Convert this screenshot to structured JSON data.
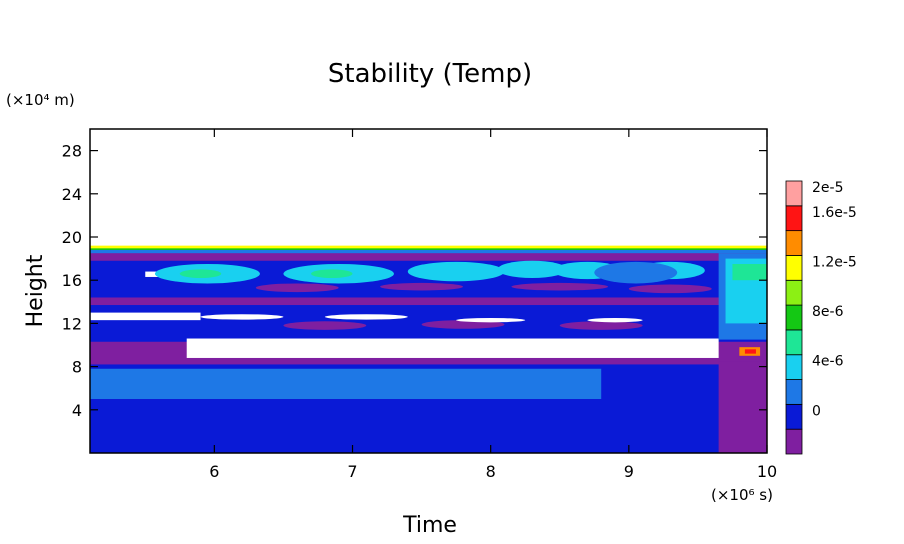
{
  "chart_data": {
    "type": "heatmap",
    "title": "Stability (Temp)",
    "xlabel": "Time",
    "ylabel": "Height",
    "x_unit": "(×10⁶ s)",
    "y_unit": "(×10⁴ m)",
    "xlim": [
      5.1,
      10
    ],
    "ylim": [
      0,
      30
    ],
    "x_ticks": [
      6,
      7,
      8,
      9,
      10
    ],
    "x_tick_labels": [
      "6",
      "7",
      "8",
      "9",
      "10"
    ],
    "y_ticks": [
      4,
      8,
      12,
      16,
      20,
      24,
      28
    ],
    "y_tick_labels": [
      "4",
      "8",
      "12",
      "16",
      "20",
      "24",
      "28"
    ],
    "grid": false,
    "colorbar": {
      "levels": [
        {
          "color": "#7f1fa0"
        },
        {
          "color": "#0a1ad6",
          "label": "0"
        },
        {
          "color": "#1e78e6"
        },
        {
          "color": "#19d0f0",
          "label": "4e-6"
        },
        {
          "color": "#1ee696"
        },
        {
          "color": "#14c814",
          "label": "8e-6"
        },
        {
          "color": "#8cf014"
        },
        {
          "color": "#ffff00",
          "label": "1.2e-5"
        },
        {
          "color": "#ff8c00"
        },
        {
          "color": "#ff1414",
          "label": "1.6e-5"
        },
        {
          "color": "#ffa0a0",
          "label": "2e-5"
        }
      ]
    },
    "regions": [
      {
        "level": 1,
        "x0": 5.1,
        "x1": 10,
        "y0": 0,
        "y1": 19
      },
      {
        "level": 2,
        "x0": 5.1,
        "x1": 8.8,
        "y0": 5,
        "y1": 7.8
      },
      {
        "level": 0,
        "x0": 5.1,
        "x1": 10,
        "y0": 8.2,
        "y1": 10.3
      },
      {
        "level": 0,
        "x0": 9.65,
        "x1": 10,
        "y0": 0,
        "y1": 8.5
      },
      {
        "level": 0,
        "x0": 5.1,
        "x1": 10,
        "y0": 17.8,
        "y1": 18.7
      },
      {
        "level": 0,
        "x0": 5.1,
        "x1": 10,
        "y0": 13.7,
        "y1": 14.4
      },
      {
        "level": 2,
        "x0": 5.1,
        "x1": 10,
        "y0": 18.5,
        "y1": 19
      },
      {
        "level": 5,
        "x0": 5.1,
        "x1": 10,
        "y0": 18.8,
        "y1": 19.1
      },
      {
        "level": 7,
        "x0": 5.1,
        "x1": 10,
        "y0": 18.95,
        "y1": 19.2
      },
      {
        "level": -1,
        "x0": 5.8,
        "x1": 9.65,
        "y0": 8.8,
        "y1": 10.6
      },
      {
        "level": -1,
        "x0": 5.1,
        "x1": 5.9,
        "y0": 12.3,
        "y1": 13
      },
      {
        "level": -1,
        "x0": 5.5,
        "x1": 5.8,
        "y0": 16.3,
        "y1": 16.8
      },
      {
        "level": 2,
        "x0": 9.65,
        "x1": 10,
        "y0": 10.5,
        "y1": 18.5
      },
      {
        "level": 3,
        "x0": 9.7,
        "x1": 10,
        "y0": 12,
        "y1": 18
      },
      {
        "level": 4,
        "x0": 9.75,
        "x1": 10,
        "y0": 16,
        "y1": 17.5
      },
      {
        "level": 8,
        "x0": 9.8,
        "x1": 9.95,
        "y0": 9,
        "y1": 9.8
      },
      {
        "level": 9,
        "x0": 9.84,
        "x1": 9.92,
        "y0": 9.2,
        "y1": 9.6
      }
    ],
    "cells": [
      {
        "level": 3,
        "x": 5.95,
        "y": 16.6,
        "rx": 0.38,
        "ry": 0.9
      },
      {
        "level": 4,
        "x": 5.9,
        "y": 16.6,
        "rx": 0.15,
        "ry": 0.4
      },
      {
        "level": 3,
        "x": 6.9,
        "y": 16.6,
        "rx": 0.4,
        "ry": 0.9
      },
      {
        "level": 4,
        "x": 6.85,
        "y": 16.6,
        "rx": 0.15,
        "ry": 0.4
      },
      {
        "level": 3,
        "x": 7.75,
        "y": 16.8,
        "rx": 0.35,
        "ry": 0.9
      },
      {
        "level": 3,
        "x": 8.3,
        "y": 17,
        "rx": 0.25,
        "ry": 0.8
      },
      {
        "level": 3,
        "x": 8.7,
        "y": 16.9,
        "rx": 0.25,
        "ry": 0.8
      },
      {
        "level": 3,
        "x": 9.3,
        "y": 16.9,
        "rx": 0.25,
        "ry": 0.8
      },
      {
        "level": 2,
        "x": 9.05,
        "y": 16.7,
        "rx": 0.3,
        "ry": 1.0
      },
      {
        "level": 0,
        "x": 6.6,
        "y": 15.3,
        "rx": 0.3,
        "ry": 0.4
      },
      {
        "level": 0,
        "x": 7.5,
        "y": 15.4,
        "rx": 0.3,
        "ry": 0.35
      },
      {
        "level": 0,
        "x": 8.5,
        "y": 15.4,
        "rx": 0.35,
        "ry": 0.35
      },
      {
        "level": 0,
        "x": 9.3,
        "y": 15.2,
        "rx": 0.3,
        "ry": 0.4
      },
      {
        "level": 0,
        "x": 6.8,
        "y": 11.8,
        "rx": 0.3,
        "ry": 0.4
      },
      {
        "level": 0,
        "x": 7.8,
        "y": 11.9,
        "rx": 0.3,
        "ry": 0.4
      },
      {
        "level": 0,
        "x": 8.8,
        "y": 11.8,
        "rx": 0.3,
        "ry": 0.4
      },
      {
        "level": -1,
        "x": 6.2,
        "y": 12.6,
        "rx": 0.3,
        "ry": 0.25
      },
      {
        "level": -1,
        "x": 7.1,
        "y": 12.6,
        "rx": 0.3,
        "ry": 0.25
      },
      {
        "level": -1,
        "x": 8.0,
        "y": 12.3,
        "rx": 0.25,
        "ry": 0.2
      },
      {
        "level": -1,
        "x": 8.9,
        "y": 12.3,
        "rx": 0.2,
        "ry": 0.2
      }
    ]
  }
}
